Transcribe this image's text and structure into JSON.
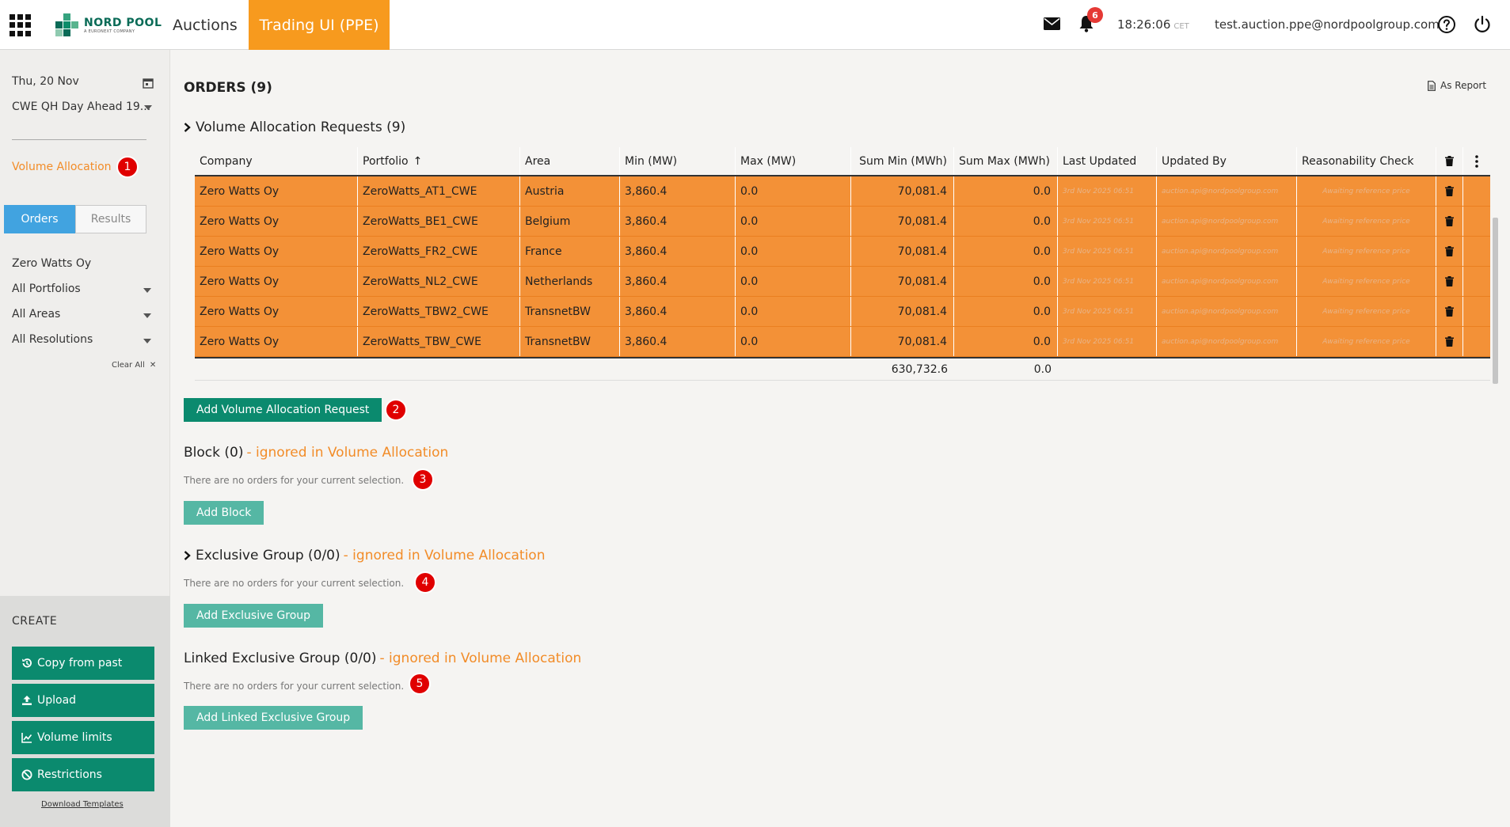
{
  "header": {
    "logo_main": "NORD POOL",
    "logo_sub": "A EURONEXT COMPANY",
    "nav_auctions": "Auctions",
    "nav_trading": "Trading UI (PPE)",
    "notifications": "6",
    "time": "18:26:06",
    "timezone": "CET",
    "user_email": "test.auction.ppe@nordpoolgroup.com"
  },
  "sidebar": {
    "date": "Thu, 20 Nov",
    "auction": "CWE QH Day Ahead 19...",
    "volume_allocation": "Volume Allocation",
    "badge1": "1",
    "tab_orders": "Orders",
    "tab_results": "Results",
    "company": "Zero Watts Oy",
    "portfolios": "All Portfolios",
    "areas": "All Areas",
    "resolutions": "All Resolutions",
    "clear_all": "Clear All",
    "create_title": "CREATE",
    "create_buttons": [
      "Copy from past",
      "Upload",
      "Volume limits",
      "Restrictions"
    ],
    "download_templates": "Download Templates"
  },
  "main": {
    "orders_title": "ORDERS (9)",
    "as_report": "As Report",
    "var_title": "Volume Allocation Requests (9)",
    "columns": [
      "Company",
      "Portfolio",
      "Area",
      "Min (MW)",
      "Max (MW)",
      "Sum Min (MWh)",
      "Sum Max (MWh)",
      "Last Updated",
      "Updated By",
      "Reasonability Check"
    ],
    "rows": [
      {
        "company": "Zero Watts Oy",
        "portfolio": "ZeroWatts_AT1_CWE",
        "area": "Austria",
        "min": "3,860.4",
        "max": "0.0",
        "summin": "70,081.4",
        "summax": "0.0",
        "updated": "3rd Nov 2025 06:51",
        "by": "auction.api@nordpoolgroup.com",
        "check": "Awaiting reference price"
      },
      {
        "company": "Zero Watts Oy",
        "portfolio": "ZeroWatts_BE1_CWE",
        "area": "Belgium",
        "min": "3,860.4",
        "max": "0.0",
        "summin": "70,081.4",
        "summax": "0.0",
        "updated": "3rd Nov 2025 06:51",
        "by": "auction.api@nordpoolgroup.com",
        "check": "Awaiting reference price"
      },
      {
        "company": "Zero Watts Oy",
        "portfolio": "ZeroWatts_FR2_CWE",
        "area": "France",
        "min": "3,860.4",
        "max": "0.0",
        "summin": "70,081.4",
        "summax": "0.0",
        "updated": "3rd Nov 2025 06:51",
        "by": "auction.api@nordpoolgroup.com",
        "check": "Awaiting reference price"
      },
      {
        "company": "Zero Watts Oy",
        "portfolio": "ZeroWatts_NL2_CWE",
        "area": "Netherlands",
        "min": "3,860.4",
        "max": "0.0",
        "summin": "70,081.4",
        "summax": "0.0",
        "updated": "3rd Nov 2025 06:51",
        "by": "auction.api@nordpoolgroup.com",
        "check": "Awaiting reference price"
      },
      {
        "company": "Zero Watts Oy",
        "portfolio": "ZeroWatts_TBW2_CWE",
        "area": "TransnetBW",
        "min": "3,860.4",
        "max": "0.0",
        "summin": "70,081.4",
        "summax": "0.0",
        "updated": "3rd Nov 2025 06:51",
        "by": "auction.api@nordpoolgroup.com",
        "check": "Awaiting reference price"
      },
      {
        "company": "Zero Watts Oy",
        "portfolio": "ZeroWatts_TBW_CWE",
        "area": "TransnetBW",
        "min": "3,860.4",
        "max": "0.0",
        "summin": "70,081.4",
        "summax": "0.0",
        "updated": "3rd Nov 2025 06:51",
        "by": "auction.api@nordpoolgroup.com",
        "check": "Awaiting reference price"
      }
    ],
    "total_summin": "630,732.6",
    "total_summax": "0.0",
    "add_var": "Add Volume Allocation Request",
    "badge2": "2",
    "block_title": "Block (0)",
    "ignored_text": "- ignored in Volume Allocation",
    "no_orders": "There are no orders for your current selection.",
    "badge3": "3",
    "add_block": "Add Block",
    "excl_title": "Exclusive Group (0/0)",
    "badge4": "4",
    "add_excl": "Add Exclusive Group",
    "linked_title": "Linked Exclusive Group (0/0)",
    "badge5": "5",
    "add_linked": "Add Linked Exclusive Group"
  },
  "colors": {
    "accent_orange": "#f79a1e",
    "row_orange": "#f39137",
    "green": "#0b8a6e",
    "light_green": "#55b7a4",
    "blue_tab": "#41a3e0",
    "badge_red": "#e00000"
  }
}
